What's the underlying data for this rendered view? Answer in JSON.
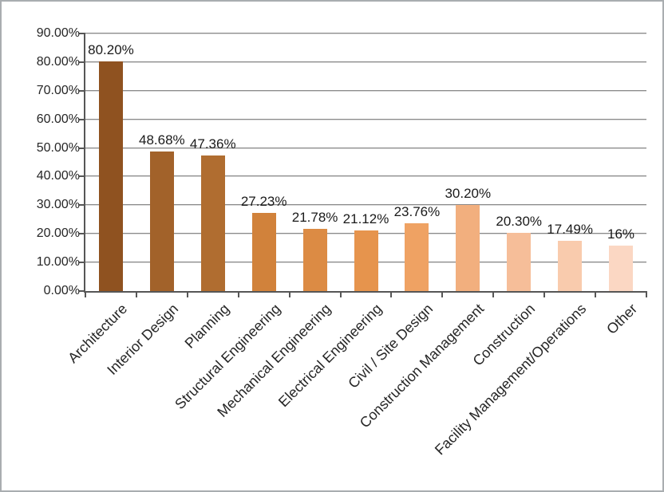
{
  "chart_data": {
    "type": "bar",
    "title": "",
    "xlabel": "",
    "ylabel": "",
    "categories": [
      "Architecture",
      "Interior Design",
      "Planning",
      "Structural Engineering",
      "Mechanical Engineering",
      "Electrical Engineering",
      "Civil / Site Design",
      "Construction Management",
      "Construction",
      "Facility Management/Operations",
      "Other"
    ],
    "values": [
      80.2,
      48.68,
      47.36,
      27.23,
      21.78,
      21.12,
      23.76,
      30.2,
      20.3,
      17.49,
      16
    ],
    "value_labels": [
      "80.20%",
      "48.68%",
      "47.36%",
      "27.23%",
      "21.78%",
      "21.12%",
      "23.76%",
      "30.20%",
      "20.30%",
      "17.49%",
      "16%"
    ],
    "ytick_labels": [
      "0.00%",
      "10.00%",
      "20.00%",
      "30.00%",
      "40.00%",
      "50.00%",
      "60.00%",
      "70.00%",
      "80.00%",
      "90.00%"
    ],
    "ylim": [
      0,
      90
    ],
    "grid": true,
    "legend": "none",
    "bar_colors": [
      "#8F5220",
      "#A2622A",
      "#B06D30",
      "#D1823B",
      "#DC8B44",
      "#E6944D",
      "#EFA263",
      "#F2AF7E",
      "#F6BE99",
      "#F9CBAD",
      "#FBD7C3"
    ],
    "colors": {
      "axis": "#565656",
      "gridline": "#8B8B8B",
      "gridline_shadow": "#D6D6D6",
      "text": "#262626",
      "data_label_text": "#1A1A1A",
      "background": "#FFFFFF",
      "frame_border": "#A9ADB0"
    }
  }
}
